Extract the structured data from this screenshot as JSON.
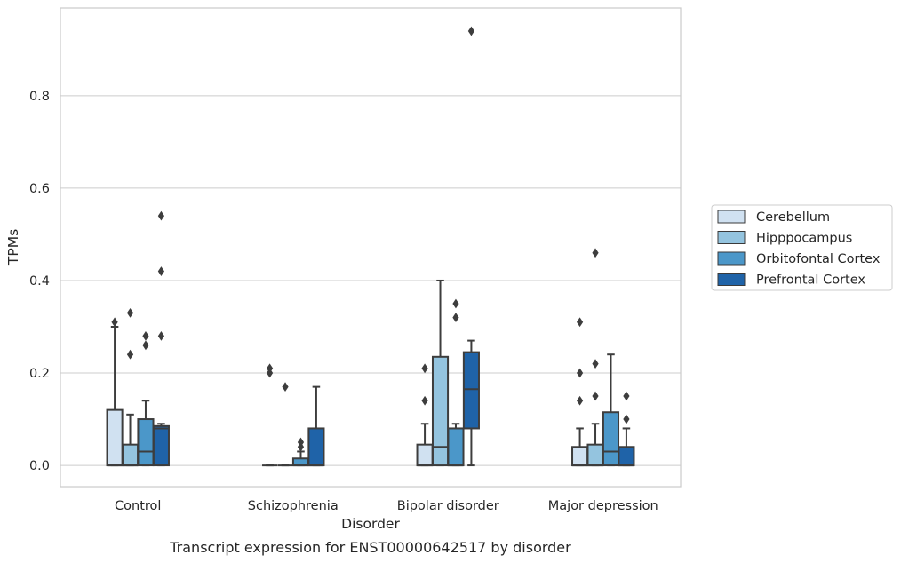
{
  "caption": "Transcript expression for ENST00000642517 by disorder",
  "colors": {
    "series": [
      "#d0e1f1",
      "#94c4df",
      "#4b97c9",
      "#1f63a8"
    ],
    "box_edge": "#3d3d3d",
    "grid": "#cccccc",
    "frame": "#cccccc"
  },
  "chart_data": {
    "type": "box",
    "xlabel": "Disorder",
    "ylabel": "TPMs",
    "ylim": [
      -0.046,
      0.99
    ],
    "yticks": [
      0.0,
      0.2,
      0.4,
      0.6,
      0.8
    ],
    "ytick_labels": [
      "0.0",
      "0.2",
      "0.4",
      "0.6",
      "0.8"
    ],
    "grid": true,
    "legend_position": "right-outside",
    "categories": [
      "Control",
      "Schizophrenia",
      "Bipolar disorder",
      "Major depression"
    ],
    "series": [
      {
        "name": "Cerebellum",
        "boxes": [
          {
            "q1": 0.0,
            "median": 0.0,
            "q3": 0.12,
            "wlow": 0.0,
            "whigh": 0.3,
            "outliers": [
              0.31
            ]
          },
          {
            "q1": 0.0,
            "median": 0.0,
            "q3": 0.0,
            "wlow": 0.0,
            "whigh": 0.0,
            "outliers": [
              0.2,
              0.21
            ]
          },
          {
            "q1": 0.0,
            "median": 0.0,
            "q3": 0.045,
            "wlow": 0.0,
            "whigh": 0.09,
            "outliers": [
              0.14,
              0.21
            ]
          },
          {
            "q1": 0.0,
            "median": 0.0,
            "q3": 0.04,
            "wlow": 0.0,
            "whigh": 0.08,
            "outliers": [
              0.14,
              0.2,
              0.31
            ]
          }
        ]
      },
      {
        "name": "Hipppocampus",
        "boxes": [
          {
            "q1": 0.0,
            "median": 0.0,
            "q3": 0.045,
            "wlow": 0.0,
            "whigh": 0.11,
            "outliers": [
              0.24,
              0.33
            ]
          },
          {
            "q1": 0.0,
            "median": 0.0,
            "q3": 0.0,
            "wlow": 0.0,
            "whigh": 0.0,
            "outliers": [
              0.17
            ]
          },
          {
            "q1": 0.0,
            "median": 0.04,
            "q3": 0.235,
            "wlow": 0.0,
            "whigh": 0.4,
            "outliers": []
          },
          {
            "q1": 0.0,
            "median": 0.0,
            "q3": 0.045,
            "wlow": 0.0,
            "whigh": 0.09,
            "outliers": [
              0.15,
              0.22,
              0.46
            ]
          }
        ]
      },
      {
        "name": "Orbitofontal Cortex",
        "boxes": [
          {
            "q1": 0.0,
            "median": 0.03,
            "q3": 0.1,
            "wlow": 0.0,
            "whigh": 0.14,
            "outliers": [
              0.26,
              0.28
            ]
          },
          {
            "q1": 0.0,
            "median": 0.0,
            "q3": 0.015,
            "wlow": 0.0,
            "whigh": 0.03,
            "outliers": [
              0.04,
              0.05
            ]
          },
          {
            "q1": 0.0,
            "median": 0.0,
            "q3": 0.08,
            "wlow": 0.0,
            "whigh": 0.09,
            "outliers": [
              0.32,
              0.35
            ]
          },
          {
            "q1": 0.0,
            "median": 0.03,
            "q3": 0.115,
            "wlow": 0.0,
            "whigh": 0.24,
            "outliers": []
          }
        ]
      },
      {
        "name": "Prefrontal Cortex",
        "boxes": [
          {
            "q1": 0.0,
            "median": 0.08,
            "q3": 0.085,
            "wlow": 0.0,
            "whigh": 0.09,
            "outliers": [
              0.28,
              0.42,
              0.54
            ]
          },
          {
            "q1": 0.0,
            "median": 0.0,
            "q3": 0.08,
            "wlow": 0.0,
            "whigh": 0.17,
            "outliers": []
          },
          {
            "q1": 0.08,
            "median": 0.165,
            "q3": 0.245,
            "wlow": 0.0,
            "whigh": 0.27,
            "outliers": [
              0.94
            ]
          },
          {
            "q1": 0.0,
            "median": 0.0,
            "q3": 0.04,
            "wlow": 0.0,
            "whigh": 0.08,
            "outliers": [
              0.1,
              0.15
            ]
          }
        ]
      }
    ]
  }
}
